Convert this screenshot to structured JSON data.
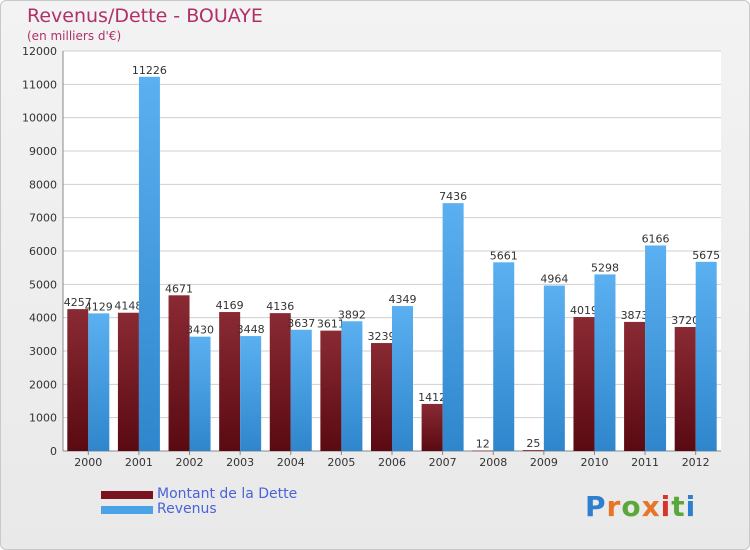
{
  "header": {
    "title": "Revenus/Dette - BOUAYE",
    "subtitle": "(en milliers d'€)"
  },
  "chart_data": {
    "type": "bar",
    "categories": [
      "2000",
      "2001",
      "2002",
      "2003",
      "2004",
      "2005",
      "2006",
      "2007",
      "2008",
      "2009",
      "2010",
      "2011",
      "2012"
    ],
    "series": [
      {
        "name": "Montant de la Dette",
        "color": "#7a1420",
        "values": [
          4257,
          4148,
          4671,
          4169,
          4136,
          3611,
          3239,
          1412,
          12,
          25,
          4019,
          3873,
          3720
        ],
        "labels": [
          "4257",
          "4148",
          "4671",
          "4169",
          "4136",
          "3611",
          "3239",
          "1412",
          "12",
          "25",
          "4019",
          "3873",
          "3720"
        ]
      },
      {
        "name": "Revenus",
        "color": "#4aa3e6",
        "values": [
          4129,
          11226,
          3430,
          3448,
          3637,
          3892,
          4349,
          7436,
          5661,
          4964,
          5298,
          6166,
          5675
        ],
        "labels": [
          "4129",
          "11226",
          "3430",
          "3448",
          "3637",
          "3892",
          "4349",
          "7436",
          "5661",
          "4964",
          "5298",
          "6166",
          "5675"
        ]
      }
    ],
    "ylim": [
      0,
      12000
    ],
    "yticks": [
      "0",
      "1000",
      "2000",
      "3000",
      "4000",
      "5000",
      "6000",
      "7000",
      "8000",
      "9000",
      "10000",
      "11000",
      "12000"
    ],
    "grid": true,
    "legend_position": "bottom-left"
  },
  "logo": {
    "text": "Proxiti",
    "letters": [
      "P",
      "r",
      "o",
      "x",
      "i",
      "t",
      "i"
    ],
    "colors": [
      "#2f7fd0",
      "#e8742a",
      "#5aa83a",
      "#e8742a",
      "#d8352a",
      "#5aa83a",
      "#2f7fd0"
    ]
  }
}
